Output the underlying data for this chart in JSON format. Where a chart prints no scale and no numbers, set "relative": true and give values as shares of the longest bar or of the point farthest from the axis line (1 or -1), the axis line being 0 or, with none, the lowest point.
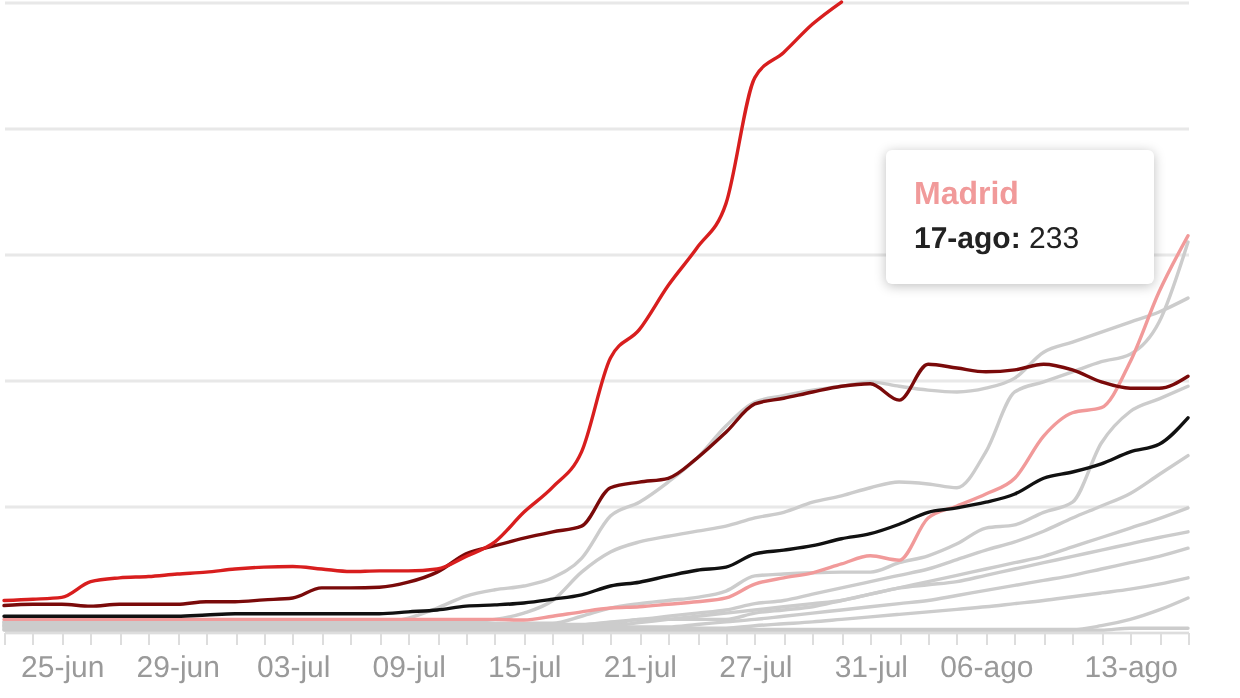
{
  "chart_data": {
    "type": "line",
    "relative": true,
    "grid": true,
    "categories": [
      null,
      null,
      "25-jun",
      null,
      null,
      null,
      "29-jun",
      null,
      null,
      null,
      "03-jul",
      null,
      null,
      null,
      "09-jul",
      null,
      null,
      null,
      "15-jul",
      null,
      null,
      null,
      "21-jul",
      null,
      null,
      null,
      "27-jul",
      null,
      null,
      null,
      "31-jul",
      null,
      null,
      null,
      "06-ago",
      null,
      null,
      null,
      null,
      "13-ago",
      null,
      null
    ],
    "annotations": [
      "17-ago: 233"
    ],
    "series": [
      {
        "color": "#cccccc",
        "values": [
          0.016,
          0.016,
          0.016,
          0.016,
          0.016,
          0.016,
          0.016,
          0.016,
          0.016,
          0.016,
          0.016,
          0.016,
          0.016,
          0.016,
          0.022,
          0.038,
          0.057,
          0.067,
          0.073,
          0.086,
          0.117,
          0.184,
          0.206,
          0.238,
          0.276,
          0.327,
          0.365,
          0.375,
          0.384,
          0.39,
          0.397,
          0.39,
          0.384,
          0.381,
          0.387,
          0.403,
          0.444,
          0.46,
          0.476,
          0.492,
          0.508,
          0.53
        ]
      },
      {
        "color": "#cccccc",
        "values": [
          0.016,
          0.016,
          0.016,
          0.016,
          0.016,
          0.016,
          0.016,
          0.016,
          0.016,
          0.016,
          0.016,
          0.016,
          0.016,
          0.016,
          0.016,
          0.016,
          0.016,
          0.02,
          0.03,
          0.05,
          0.095,
          0.127,
          0.143,
          0.152,
          0.16,
          0.168,
          0.181,
          0.19,
          0.206,
          0.216,
          0.229,
          0.238,
          0.235,
          0.229,
          0.286,
          0.381,
          0.397,
          0.413,
          0.429,
          0.441,
          0.492,
          0.619
        ]
      },
      {
        "color": "#cccccc",
        "values": [
          0.014,
          0.014,
          0.014,
          0.014,
          0.014,
          0.014,
          0.014,
          0.014,
          0.014,
          0.014,
          0.014,
          0.014,
          0.014,
          0.014,
          0.014,
          0.014,
          0.014,
          0.014,
          0.014,
          0.014,
          0.025,
          0.038,
          0.045,
          0.05,
          0.055,
          0.065,
          0.089,
          0.092,
          0.094,
          0.095,
          0.095,
          0.11,
          0.121,
          0.14,
          0.165,
          0.17,
          0.19,
          0.206,
          0.3,
          0.35,
          0.37,
          0.39
        ]
      },
      {
        "color": "#cccccc",
        "values": [
          0.012,
          0.012,
          0.012,
          0.012,
          0.012,
          0.012,
          0.012,
          0.012,
          0.012,
          0.012,
          0.012,
          0.012,
          0.012,
          0.012,
          0.012,
          0.012,
          0.012,
          0.012,
          0.012,
          0.012,
          0.012,
          0.016,
          0.02,
          0.025,
          0.03,
          0.035,
          0.045,
          0.05,
          0.06,
          0.07,
          0.08,
          0.09,
          0.1,
          0.115,
          0.13,
          0.143,
          0.16,
          0.181,
          0.2,
          0.22,
          0.25,
          0.28
        ]
      },
      {
        "color": "#cccccc",
        "values": [
          0.01,
          0.01,
          0.01,
          0.01,
          0.01,
          0.01,
          0.01,
          0.01,
          0.01,
          0.01,
          0.01,
          0.01,
          0.01,
          0.01,
          0.01,
          0.01,
          0.01,
          0.01,
          0.01,
          0.01,
          0.01,
          0.012,
          0.02,
          0.02,
          0.02,
          0.02,
          0.03,
          0.035,
          0.04,
          0.05,
          0.06,
          0.07,
          0.08,
          0.09,
          0.1,
          0.11,
          0.12,
          0.135,
          0.15,
          0.165,
          0.18,
          0.197
        ]
      },
      {
        "color": "#cccccc",
        "values": [
          0.01,
          0.01,
          0.01,
          0.01,
          0.01,
          0.01,
          0.01,
          0.01,
          0.01,
          0.01,
          0.01,
          0.01,
          0.01,
          0.01,
          0.01,
          0.01,
          0.01,
          0.01,
          0.01,
          0.01,
          0.01,
          0.01,
          0.015,
          0.02,
          0.025,
          0.03,
          0.035,
          0.04,
          0.045,
          0.05,
          0.06,
          0.07,
          0.075,
          0.08,
          0.09,
          0.1,
          0.11,
          0.12,
          0.13,
          0.14,
          0.15,
          0.159
        ]
      },
      {
        "color": "#cccccc",
        "values": [
          0.008,
          0.008,
          0.008,
          0.008,
          0.008,
          0.008,
          0.008,
          0.008,
          0.008,
          0.008,
          0.008,
          0.008,
          0.008,
          0.008,
          0.008,
          0.008,
          0.008,
          0.008,
          0.008,
          0.008,
          0.008,
          0.008,
          0.008,
          0.008,
          0.012,
          0.016,
          0.02,
          0.025,
          0.03,
          0.035,
          0.04,
          0.045,
          0.05,
          0.058,
          0.066,
          0.074,
          0.082,
          0.09,
          0.1,
          0.11,
          0.12,
          0.133
        ]
      },
      {
        "color": "#cccccc",
        "values": [
          0.006,
          0.006,
          0.006,
          0.006,
          0.006,
          0.006,
          0.006,
          0.006,
          0.006,
          0.006,
          0.006,
          0.006,
          0.006,
          0.006,
          0.006,
          0.006,
          0.006,
          0.006,
          0.006,
          0.006,
          0.006,
          0.006,
          0.006,
          0.006,
          0.006,
          0.006,
          0.01,
          0.013,
          0.016,
          0.02,
          0.024,
          0.028,
          0.032,
          0.036,
          0.04,
          0.045,
          0.05,
          0.056,
          0.062,
          0.068,
          0.076,
          0.086
        ]
      },
      {
        "color": "#cccccc",
        "values": [
          0.004,
          0.004,
          0.004,
          0.004,
          0.004,
          0.004,
          0.004,
          0.004,
          0.004,
          0.004,
          0.004,
          0.004,
          0.004,
          0.004,
          0.004,
          0.004,
          0.004,
          0.004,
          0.004,
          0.004,
          0.004,
          0.004,
          0.004,
          0.004,
          0.004,
          0.004,
          0.004,
          0.004,
          0.004,
          0.004,
          0.004,
          0.004,
          0.004,
          0.004,
          0.004,
          0.004,
          0.004,
          0.004,
          0.01,
          0.02,
          0.035,
          0.054
        ]
      },
      {
        "color": "#cccccc",
        "values": [
          0.003,
          0.003,
          0.003,
          0.003,
          0.003,
          0.003,
          0.003,
          0.003,
          0.003,
          0.003,
          0.003,
          0.003,
          0.003,
          0.003,
          0.003,
          0.003,
          0.003,
          0.003,
          0.003,
          0.003,
          0.003,
          0.003,
          0.003,
          0.003,
          0.003,
          0.003,
          0.003,
          0.003,
          0.003,
          0.003,
          0.003,
          0.003,
          0.003,
          0.003,
          0.003,
          0.003,
          0.003,
          0.003,
          0.003,
          0.006,
          0.006,
          0.006
        ]
      },
      {
        "name": "Madrid",
        "color": "#f19a9a",
        "values": [
          0.02,
          0.02,
          0.02,
          0.02,
          0.02,
          0.02,
          0.02,
          0.02,
          0.02,
          0.02,
          0.02,
          0.02,
          0.02,
          0.02,
          0.02,
          0.02,
          0.02,
          0.02,
          0.019,
          0.025,
          0.032,
          0.038,
          0.04,
          0.044,
          0.048,
          0.054,
          0.076,
          0.086,
          0.094,
          0.108,
          0.121,
          0.114,
          0.181,
          0.2,
          0.219,
          0.244,
          0.311,
          0.348,
          0.356,
          0.429,
          0.54,
          0.629
        ]
      },
      {
        "color": "#111111",
        "values": [
          0.025,
          0.025,
          0.025,
          0.025,
          0.025,
          0.025,
          0.025,
          0.027,
          0.029,
          0.029,
          0.029,
          0.029,
          0.029,
          0.029,
          0.032,
          0.035,
          0.041,
          0.043,
          0.046,
          0.052,
          0.059,
          0.073,
          0.079,
          0.089,
          0.098,
          0.103,
          0.124,
          0.13,
          0.137,
          0.148,
          0.156,
          0.171,
          0.19,
          0.197,
          0.206,
          0.219,
          0.244,
          0.254,
          0.267,
          0.286,
          0.298,
          0.34
        ]
      },
      {
        "color": "#7a0a0a",
        "values": [
          0.042,
          0.044,
          0.044,
          0.041,
          0.044,
          0.044,
          0.044,
          0.048,
          0.048,
          0.051,
          0.054,
          0.07,
          0.07,
          0.071,
          0.079,
          0.095,
          0.124,
          0.137,
          0.149,
          0.159,
          0.168,
          0.229,
          0.238,
          0.244,
          0.276,
          0.317,
          0.362,
          0.371,
          0.381,
          0.39,
          0.394,
          0.368,
          0.425,
          0.419,
          0.413,
          0.416,
          0.425,
          0.416,
          0.397,
          0.387,
          0.387,
          0.406
        ]
      },
      {
        "color": "#d81e1e",
        "values": [
          0.05,
          0.052,
          0.055,
          0.08,
          0.086,
          0.088,
          0.092,
          0.095,
          0.1,
          0.103,
          0.104,
          0.1,
          0.096,
          0.097,
          0.097,
          0.1,
          0.12,
          0.143,
          0.19,
          0.23,
          0.286,
          0.435,
          0.48,
          0.55,
          0.61,
          0.68,
          0.88,
          0.92,
          0.965,
          1,
          null,
          null,
          null,
          null,
          null,
          null,
          null,
          null,
          null,
          null,
          null,
          null
        ]
      }
    ]
  }
}
